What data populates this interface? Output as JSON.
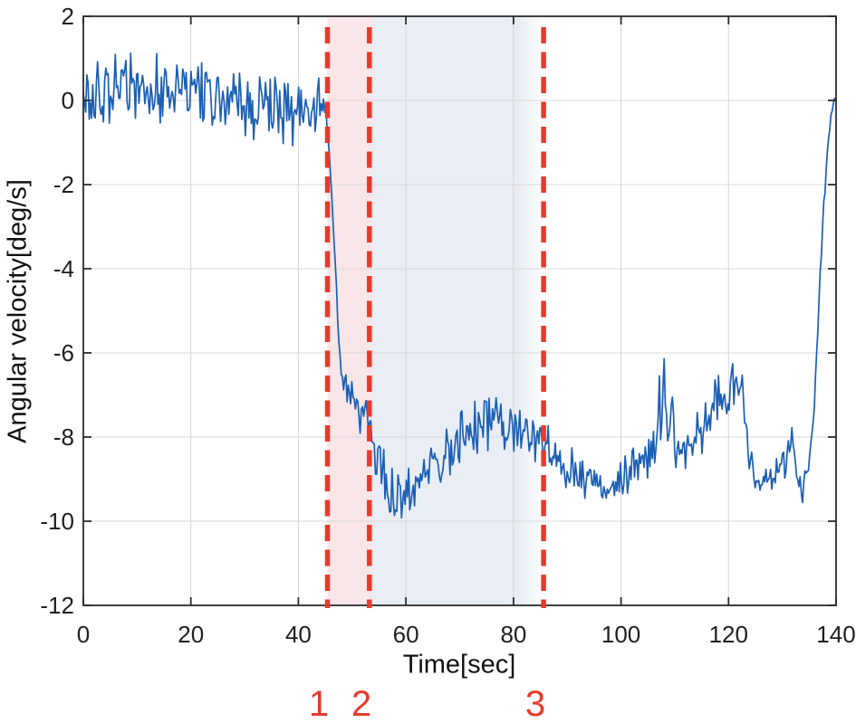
{
  "chart_data": {
    "type": "line",
    "title": "",
    "xlabel": "Time[sec]",
    "ylabel": "Angular velocity[deg/s]",
    "xlim": [
      0,
      140
    ],
    "ylim": [
      -12,
      2
    ],
    "xticks": [
      0,
      20,
      40,
      60,
      80,
      100,
      120,
      140
    ],
    "yticks": [
      2,
      0,
      -2,
      -4,
      -6,
      -8,
      -10,
      -12
    ],
    "grid": true,
    "legend": "none",
    "colors": {
      "line": "#1b5fb5",
      "grid": "#d8d8d8",
      "axis": "#2b2b2b",
      "tick_text": "#1f1f1f",
      "event": "#e8392b",
      "region_pre": "#f8e6e8",
      "region_mid": "#e9edf4",
      "background": "#ffffff"
    },
    "series": [
      {
        "name": "angular velocity",
        "color": "#1b5fb5",
        "sample_dt": 0.22,
        "noise_seed": 20,
        "keypoints_format": [
          "time_sec",
          "mean_deg_per_s",
          "max_noise_amplitude"
        ],
        "keypoints": [
          [
            0,
            0.05,
            0.9
          ],
          [
            4,
            0.2,
            0.95
          ],
          [
            8,
            0.3,
            1.0
          ],
          [
            12,
            0.35,
            1.05
          ],
          [
            16,
            0.25,
            1.0
          ],
          [
            20,
            0.1,
            0.95
          ],
          [
            24,
            0.05,
            0.9
          ],
          [
            28,
            0.0,
            0.9
          ],
          [
            32,
            -0.1,
            0.9
          ],
          [
            36,
            -0.15,
            0.95
          ],
          [
            40,
            -0.2,
            1.0
          ],
          [
            43.5,
            -0.15,
            0.9
          ],
          [
            45.2,
            -0.3,
            0.55
          ],
          [
            45.6,
            -1.0,
            0.3
          ],
          [
            46.2,
            -2.2,
            0.25
          ],
          [
            46.8,
            -3.7,
            0.25
          ],
          [
            47.4,
            -5.3,
            0.3
          ],
          [
            48,
            -6.4,
            0.35
          ],
          [
            48.6,
            -6.9,
            0.45
          ],
          [
            49.5,
            -7.1,
            0.55
          ],
          [
            50.5,
            -7.3,
            0.6
          ],
          [
            51.5,
            -7.35,
            0.6
          ],
          [
            52.5,
            -7.6,
            0.6
          ],
          [
            53.5,
            -7.85,
            0.6
          ],
          [
            54.5,
            -8.45,
            0.6
          ],
          [
            55.5,
            -8.85,
            0.65
          ],
          [
            56.5,
            -9.1,
            0.7
          ],
          [
            57.5,
            -9.25,
            0.8
          ],
          [
            58.8,
            -9.4,
            0.85
          ],
          [
            60,
            -9.3,
            0.8
          ],
          [
            61.5,
            -9.15,
            0.75
          ],
          [
            63,
            -8.85,
            0.7
          ],
          [
            65,
            -8.6,
            0.7
          ],
          [
            67,
            -8.4,
            0.7
          ],
          [
            69,
            -8.25,
            0.7
          ],
          [
            71,
            -8.0,
            0.75
          ],
          [
            73,
            -7.85,
            0.85
          ],
          [
            74.5,
            -7.55,
            0.95
          ],
          [
            76,
            -7.5,
            0.9
          ],
          [
            77.5,
            -7.65,
            0.8
          ],
          [
            79,
            -7.7,
            0.85
          ],
          [
            80.5,
            -7.8,
            0.85
          ],
          [
            82,
            -7.9,
            0.8
          ],
          [
            84,
            -7.9,
            0.9
          ],
          [
            85.5,
            -8.0,
            0.85
          ],
          [
            87,
            -8.4,
            0.7
          ],
          [
            89,
            -8.7,
            0.6
          ],
          [
            91,
            -8.8,
            0.6
          ],
          [
            93,
            -8.9,
            0.6
          ],
          [
            95,
            -9.0,
            0.65
          ],
          [
            96.5,
            -9.35,
            0.6
          ],
          [
            97.2,
            -9.5,
            0.5
          ],
          [
            98,
            -9.15,
            0.55
          ],
          [
            100,
            -8.9,
            0.6
          ],
          [
            102,
            -8.8,
            0.6
          ],
          [
            104,
            -8.65,
            0.6
          ],
          [
            105.5,
            -8.4,
            0.7
          ],
          [
            106.6,
            -7.95,
            0.9
          ],
          [
            107.7,
            -7.1,
            1.2
          ],
          [
            108.2,
            -6.6,
            0.8
          ],
          [
            108.7,
            -8.3,
            0.7
          ],
          [
            109.4,
            -6.8,
            1.0
          ],
          [
            110,
            -8.0,
            0.8
          ],
          [
            110.9,
            -8.15,
            0.8
          ],
          [
            112,
            -8.25,
            0.75
          ],
          [
            113.5,
            -7.95,
            0.8
          ],
          [
            115,
            -7.65,
            0.85
          ],
          [
            116.5,
            -7.45,
            0.9
          ],
          [
            118,
            -7.25,
            0.85
          ],
          [
            119.5,
            -6.95,
            0.85
          ],
          [
            120.7,
            -6.6,
            0.8
          ],
          [
            121.9,
            -6.55,
            0.85
          ],
          [
            122.9,
            -7.2,
            0.7
          ],
          [
            123.9,
            -8.3,
            0.6
          ],
          [
            124.9,
            -9.05,
            0.6
          ],
          [
            125.9,
            -9.35,
            0.55
          ],
          [
            127,
            -9.1,
            0.55
          ],
          [
            128.5,
            -8.9,
            0.55
          ],
          [
            130,
            -8.8,
            0.6
          ],
          [
            130.9,
            -8.35,
            0.8
          ],
          [
            131.5,
            -8.0,
            0.7
          ],
          [
            132.3,
            -8.75,
            0.6
          ],
          [
            133.3,
            -9.15,
            0.55
          ],
          [
            134.1,
            -9.3,
            0.5
          ],
          [
            134.9,
            -8.6,
            0.4
          ],
          [
            135.5,
            -8.0,
            0.3
          ],
          [
            136,
            -7.1,
            0.25
          ],
          [
            136.5,
            -5.7,
            0.2
          ],
          [
            137,
            -4.2,
            0.2
          ],
          [
            137.5,
            -3.0,
            0.2
          ],
          [
            138.1,
            -1.8,
            0.2
          ],
          [
            138.7,
            -0.7,
            0.18
          ],
          [
            139.3,
            -0.15,
            0.15
          ],
          [
            140,
            0.1,
            0.12
          ]
        ]
      }
    ],
    "annotations": {
      "vlines": [
        {
          "t": 45.4,
          "label": "1"
        },
        {
          "t": 53.2,
          "label": "2"
        },
        {
          "t": 85.6,
          "label": "3"
        }
      ],
      "vline_style": {
        "color": "#e8392b",
        "width": 5.5,
        "dash": [
          18,
          9.5
        ]
      },
      "label_color": "#e8392b",
      "regions": [
        {
          "from": 45.4,
          "to": 53.8,
          "color": "#f8e6e8",
          "fade_right": false
        },
        {
          "from": 53.8,
          "to": 85.6,
          "color": "#e9edf4",
          "fade_right": true
        }
      ]
    }
  }
}
